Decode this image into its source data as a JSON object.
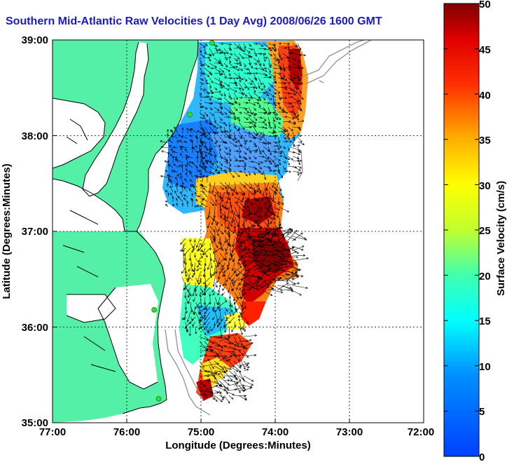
{
  "title": "Southern Mid-Atlantic Raw Velocities (1 Day Avg) 2008/06/26 1600 GMT",
  "axes": {
    "xlabel": "Longitude (Degrees:Minutes)",
    "ylabel": "Latitude (Degrees:Minutes)",
    "xticks": [
      "77:00",
      "76:00",
      "75:00",
      "74:00",
      "73:00",
      "72:00"
    ],
    "yticks": [
      "39:00",
      "38:00",
      "37:00",
      "36:00",
      "35:00"
    ],
    "xlim": [
      -77,
      -72
    ],
    "ylim": [
      35,
      39
    ]
  },
  "colorbar": {
    "label": "Surface Velocity (cm/s)",
    "ticks": [
      "50",
      "45",
      "40",
      "35",
      "30",
      "25",
      "20",
      "15",
      "10",
      "5",
      "0"
    ],
    "range": [
      0,
      50
    ],
    "colormap": "jet"
  },
  "colors": {
    "land": "#55f0a8",
    "title": "#1a1acc",
    "coast": "#000000",
    "bathymetry": "#909090",
    "station": "#33dd33"
  },
  "stations": [
    {
      "lon": -74.85,
      "lat": 38.97
    },
    {
      "lon": -75.15,
      "lat": 38.22
    },
    {
      "lon": -75.63,
      "lat": 36.18
    },
    {
      "lon": -75.57,
      "lat": 35.25
    }
  ]
}
